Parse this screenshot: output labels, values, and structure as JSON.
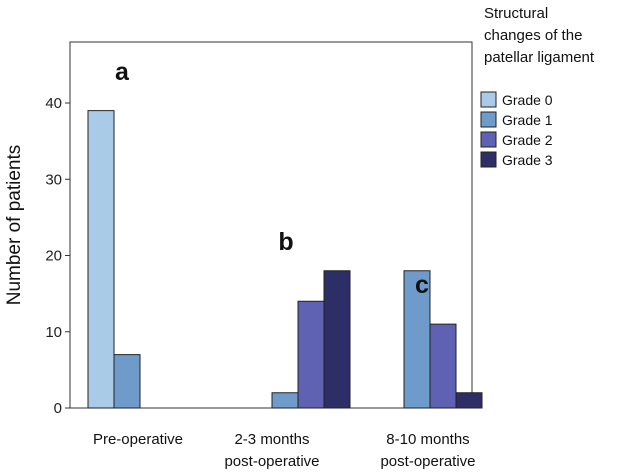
{
  "chart_data": {
    "type": "bar",
    "categories": [
      [
        "Pre-operative"
      ],
      [
        "2-3 months",
        "post-operative"
      ],
      [
        "8-10 months",
        "post-operative"
      ]
    ],
    "series": [
      {
        "name": "Grade 0",
        "color": "#a9cbe8",
        "values": [
          39,
          0,
          0
        ]
      },
      {
        "name": "Grade 1",
        "color": "#6e9bc9",
        "values": [
          7,
          2,
          18
        ]
      },
      {
        "name": "Grade 2",
        "color": "#5f62b3",
        "values": [
          0,
          14,
          11
        ]
      },
      {
        "name": "Grade 3",
        "color": "#2d2e66",
        "values": [
          0,
          18,
          2
        ]
      }
    ],
    "ylabel": "Number of patients",
    "xlabel": "",
    "ylim": [
      0,
      48
    ],
    "yticks": [
      0,
      10,
      20,
      30,
      40
    ],
    "grid": false,
    "legend": {
      "title": [
        "Structural",
        "changes of the",
        "patellar ligament"
      ],
      "placement": "right"
    },
    "annotations": [
      {
        "text": "a",
        "category": 0
      },
      {
        "text": "b",
        "category": 1
      },
      {
        "text": "c",
        "category": 2
      }
    ]
  }
}
